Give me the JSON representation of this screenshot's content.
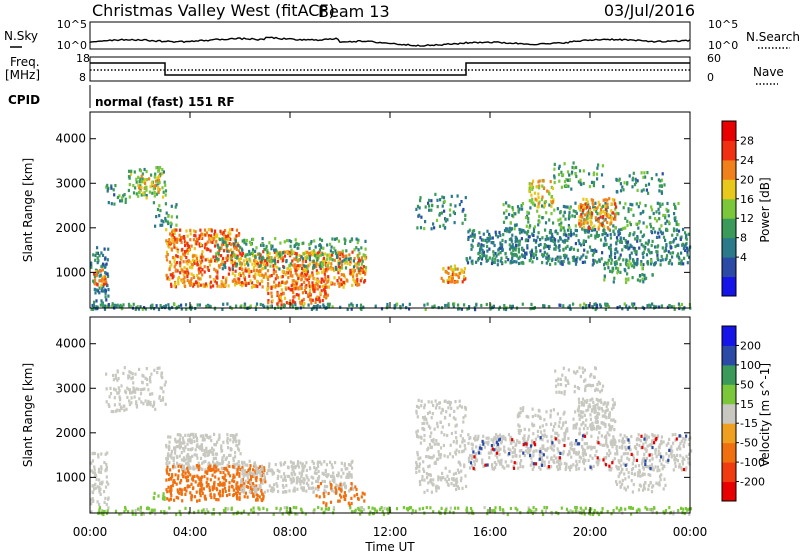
{
  "header": {
    "title": "Christmas Valley West (fitACF)",
    "beam": "Beam 13",
    "date": "03/Jul/2016"
  },
  "panels": {
    "nsky_label": "N.Sky",
    "nsearch_label": "N.Search",
    "nsky_top_tick": "10^5",
    "nsky_bottom_tick": "10^0",
    "freq_label_line1": "Freq.",
    "freq_label_line2": "[MHz]",
    "freq_ticks": [
      "18",
      "8"
    ],
    "nave_label": "Nave",
    "nave_ticks": [
      "60",
      "0"
    ],
    "cpid_label": "CPID",
    "cpid_text": "normal (fast) 151 RF"
  },
  "colors": {
    "power": [
      "#1515e8",
      "#2a4aa6",
      "#2a7a8a",
      "#3a9a5a",
      "#7ac83a",
      "#e8c81a",
      "#f0801a",
      "#f03010",
      "#e80000"
    ],
    "velocity": [
      "#e80000",
      "#f03a10",
      "#f07010",
      "#f0a020",
      "#c8c8c0",
      "#7ac83a",
      "#3a9a5a",
      "#2a4aa6",
      "#1515e8"
    ]
  },
  "chart_data": [
    {
      "type": "heatmap",
      "parameter": "Power",
      "ylabel": "Slant Range [km]",
      "colorbar_label": "Power [dB]",
      "colorbar_ticks": [
        "28",
        "24",
        "20",
        "16",
        "12",
        "8",
        "4"
      ],
      "ylim": [
        200,
        4600
      ],
      "y_ticks": [
        "4000",
        "3000",
        "2000",
        "1000"
      ],
      "x_range_hours": [
        0,
        24
      ],
      "scatter_regions": [
        {
          "t0": 0.0,
          "t1": 0.7,
          "r0": 200,
          "r1": 1600,
          "v": 10,
          "d": 0.5
        },
        {
          "t0": 0.1,
          "t1": 0.6,
          "r0": 700,
          "r1": 1100,
          "v": 26,
          "d": 0.8
        },
        {
          "t0": 0.6,
          "t1": 1.4,
          "r0": 2500,
          "r1": 3000,
          "v": 12,
          "d": 0.35
        },
        {
          "t0": 1.5,
          "t1": 3.0,
          "r0": 2700,
          "r1": 3400,
          "v": 16,
          "d": 0.45
        },
        {
          "t0": 1.8,
          "t1": 2.8,
          "r0": 2800,
          "r1": 3200,
          "v": 22,
          "d": 0.5
        },
        {
          "t0": 2.5,
          "t1": 3.5,
          "r0": 2000,
          "r1": 2600,
          "v": 14,
          "d": 0.3
        },
        {
          "t0": 3.0,
          "t1": 6.0,
          "r0": 1500,
          "r1": 2000,
          "v": 27,
          "d": 0.8
        },
        {
          "t0": 3.0,
          "t1": 11.0,
          "r0": 700,
          "r1": 1500,
          "v": 26,
          "d": 0.75
        },
        {
          "t0": 5.0,
          "t1": 11.0,
          "r0": 1100,
          "r1": 1800,
          "v": 14,
          "d": 0.35
        },
        {
          "t0": 7.0,
          "t1": 9.5,
          "r0": 300,
          "r1": 700,
          "v": 27,
          "d": 0.7
        },
        {
          "t0": 0.0,
          "t1": 24.0,
          "r0": 200,
          "r1": 330,
          "v": 12,
          "d": 0.6
        },
        {
          "t0": 13.0,
          "t1": 15.0,
          "r0": 2000,
          "r1": 2800,
          "v": 12,
          "d": 0.25
        },
        {
          "t0": 14.0,
          "t1": 15.0,
          "r0": 800,
          "r1": 1200,
          "v": 24,
          "d": 0.8
        },
        {
          "t0": 15.0,
          "t1": 24.0,
          "r0": 1200,
          "r1": 2000,
          "v": 11,
          "d": 0.55
        },
        {
          "t0": 16.5,
          "t1": 23.5,
          "r0": 2000,
          "r1": 2600,
          "v": 14,
          "d": 0.35
        },
        {
          "t0": 17.5,
          "t1": 18.5,
          "r0": 2500,
          "r1": 3100,
          "v": 22,
          "d": 0.6
        },
        {
          "t0": 18.5,
          "t1": 20.5,
          "r0": 2900,
          "r1": 3500,
          "v": 14,
          "d": 0.3
        },
        {
          "t0": 19.5,
          "t1": 21.0,
          "r0": 2000,
          "r1": 2700,
          "v": 25,
          "d": 0.65
        },
        {
          "t0": 20.5,
          "t1": 22.5,
          "r0": 800,
          "r1": 1300,
          "v": 14,
          "d": 0.4
        },
        {
          "t0": 21.0,
          "t1": 23.0,
          "r0": 2800,
          "r1": 3300,
          "v": 12,
          "d": 0.3
        }
      ]
    },
    {
      "type": "heatmap",
      "parameter": "Velocity",
      "ylabel": "Slant Range [km]",
      "xlabel": "Time UT",
      "colorbar_label": "Velocity [m s^-1]",
      "colorbar_ticks": [
        "200",
        "100",
        "50",
        "15",
        "-15",
        "-50",
        "-100",
        "-200"
      ],
      "ylim": [
        200,
        4600
      ],
      "y_ticks": [
        "4000",
        "3000",
        "2000",
        "1000"
      ],
      "x_ticks": [
        "00:00",
        "04:00",
        "08:00",
        "12:00",
        "16:00",
        "20:00",
        "00:00"
      ],
      "x_range_hours": [
        0,
        24
      ],
      "scatter_regions": [
        {
          "t0": 0.0,
          "t1": 0.7,
          "r0": 400,
          "r1": 1600,
          "v": 0,
          "d": 0.5
        },
        {
          "t0": 0.6,
          "t1": 3.0,
          "r0": 2500,
          "r1": 3500,
          "v": 0,
          "d": 0.35
        },
        {
          "t0": 3.0,
          "t1": 6.0,
          "r0": 1200,
          "r1": 2000,
          "v": 0,
          "d": 0.7
        },
        {
          "t0": 3.0,
          "t1": 7.0,
          "r0": 500,
          "r1": 1300,
          "v": -70,
          "d": 0.65
        },
        {
          "t0": 6.0,
          "t1": 10.5,
          "r0": 700,
          "r1": 1400,
          "v": 0,
          "d": 0.6
        },
        {
          "t0": 9.0,
          "t1": 11.0,
          "r0": 400,
          "r1": 900,
          "v": -70,
          "d": 0.3
        },
        {
          "t0": 2.5,
          "t1": 3.0,
          "r0": 500,
          "r1": 700,
          "v": 30,
          "d": 0.6
        },
        {
          "t0": 0.0,
          "t1": 24.0,
          "r0": 200,
          "r1": 360,
          "v": 25,
          "d": 0.5
        },
        {
          "t0": 13.0,
          "t1": 15.0,
          "r0": 700,
          "r1": 2800,
          "v": 0,
          "d": 0.35
        },
        {
          "t0": 15.0,
          "t1": 24.0,
          "r0": 1200,
          "r1": 2000,
          "v": 0,
          "d": 0.5
        },
        {
          "t0": 17.0,
          "t1": 21.0,
          "r0": 2000,
          "r1": 2600,
          "v": 0,
          "d": 0.3
        },
        {
          "t0": 19.5,
          "t1": 21.0,
          "r0": 2100,
          "r1": 2800,
          "v": 0,
          "d": 0.6
        },
        {
          "t0": 21.0,
          "t1": 23.0,
          "r0": 700,
          "r1": 1300,
          "v": 0,
          "d": 0.4
        },
        {
          "t0": 18.5,
          "t1": 20.5,
          "r0": 2900,
          "r1": 3500,
          "v": 0,
          "d": 0.3
        },
        {
          "t0": 15.0,
          "t1": 24.0,
          "r0": 1200,
          "r1": 2000,
          "v": 150,
          "d": 0.04
        },
        {
          "t0": 15.0,
          "t1": 24.0,
          "r0": 1200,
          "r1": 2000,
          "v": -220,
          "d": 0.03
        }
      ]
    }
  ]
}
